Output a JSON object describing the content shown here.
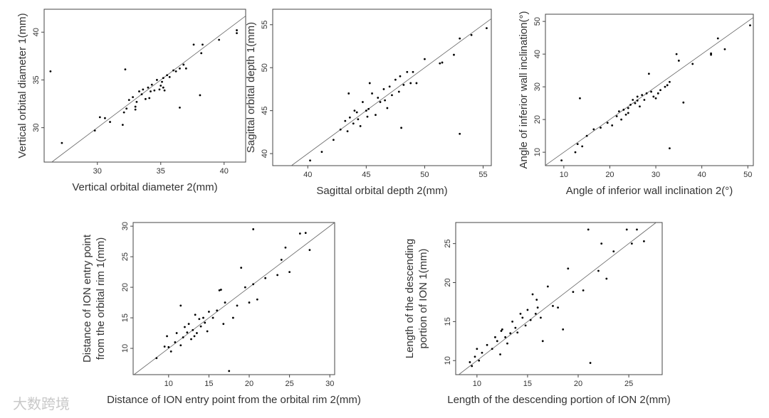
{
  "chart_data": [
    {
      "type": "scatter",
      "xlabel": "Vertical orbital diameter 2(mm)",
      "ylabel": "Vertical orbital diameter 1(mm)",
      "xlim": [
        25.8,
        41.7
      ],
      "ylim": [
        26.4,
        42.4
      ],
      "xticks": [
        30,
        35,
        40
      ],
      "yticks": [
        30,
        35,
        40
      ],
      "color": "#000000",
      "x": [
        26.3,
        27.2,
        29.8,
        30.2,
        30.6,
        31,
        32,
        32.1,
        32.3,
        32.5,
        32.8,
        33,
        33.1,
        33.3,
        33.5,
        33.6,
        33.8,
        34,
        34.1,
        34.3,
        34.5,
        34.7,
        34.9,
        35,
        35.1,
        35.2,
        35.3,
        35.5,
        35.7,
        36,
        36.2,
        36.5,
        36.8,
        37,
        37.6,
        38.1,
        38.2,
        38.3,
        39.6,
        41,
        41,
        32.2,
        33,
        34.2,
        35.2,
        36.5
      ],
      "values": [
        35.9,
        28.4,
        29.7,
        31.1,
        31,
        30.6,
        30.3,
        31.6,
        32,
        32.9,
        33.2,
        32.2,
        32.7,
        33.8,
        33.5,
        34,
        33,
        34.2,
        33.1,
        34.5,
        33.9,
        35,
        34,
        34.4,
        34.8,
        35.2,
        33.9,
        35.5,
        35.3,
        36,
        35.9,
        36.2,
        36.6,
        36.2,
        38.7,
        33.4,
        37.8,
        38.7,
        39.2,
        40.2,
        39.9,
        36.1,
        31.9,
        33.8,
        34.2,
        32.1
      ]
    },
    {
      "type": "scatter",
      "xlabel": "Sagittal orbital depth 2(mm)",
      "ylabel": "Sagittal orbital depth 1(mm)",
      "xlim": [
        37.0,
        55.7
      ],
      "ylim": [
        38.6,
        56.8
      ],
      "xticks": [
        40,
        45,
        50,
        55
      ],
      "yticks": [
        40,
        45,
        50,
        55
      ],
      "color": "#000000",
      "x": [
        40.2,
        41.2,
        42.2,
        42.8,
        43.2,
        43.5,
        43.6,
        43.9,
        44,
        44.2,
        44.5,
        44.7,
        45,
        45.1,
        45.3,
        45.5,
        45.8,
        46,
        46.2,
        46.5,
        46.8,
        47,
        47.2,
        47.5,
        47.8,
        48,
        48.2,
        48.5,
        48.8,
        49,
        49.3,
        50,
        51.3,
        51.5,
        52.5,
        53,
        53,
        54,
        55.3,
        44.3,
        45.2,
        46.6,
        47.9,
        43.4
      ],
      "values": [
        39.2,
        40.2,
        41.6,
        42.8,
        43.8,
        47,
        44.2,
        43.5,
        45,
        44.8,
        43.2,
        46,
        45,
        44.3,
        48.2,
        47,
        44.5,
        46.5,
        46,
        47.5,
        45.3,
        47.8,
        46.8,
        48.6,
        47.2,
        43,
        48,
        49.5,
        48.2,
        49.5,
        48.2,
        51,
        50.5,
        50.6,
        51.5,
        42.3,
        53.4,
        53.8,
        54.6,
        44,
        45.2,
        46.2,
        49,
        42.6
      ]
    },
    {
      "type": "scatter",
      "xlabel": "Angle of inferior wall inclination 2(°)",
      "ylabel": "Angle of inferior wall inclination(°)",
      "xlim": [
        6.0,
        51.2
      ],
      "ylim": [
        5.9,
        52.2
      ],
      "xticks": [
        10,
        20,
        30,
        40,
        50
      ],
      "yticks": [
        10,
        20,
        30,
        40,
        50
      ],
      "color": "#000000",
      "x": [
        9.5,
        12.5,
        13,
        13.5,
        14,
        15,
        16.5,
        18,
        19.5,
        20.5,
        21.5,
        22,
        22.5,
        23,
        23.5,
        24,
        24.5,
        25,
        25.5,
        26,
        26.5,
        27,
        27.5,
        28,
        28.5,
        29,
        29.5,
        30,
        31,
        32,
        32.5,
        33,
        33,
        34.5,
        35,
        36,
        38,
        42,
        42,
        43.5,
        45,
        50.5,
        24,
        26,
        30.5
      ],
      "values": [
        7.5,
        10,
        12.5,
        26.5,
        11.8,
        15,
        17,
        17.5,
        19,
        18.2,
        21,
        22.5,
        20,
        23,
        21.5,
        22,
        24.5,
        26,
        25,
        27,
        24,
        27.5,
        26,
        28,
        34,
        28.5,
        27,
        26.5,
        29,
        30,
        30.5,
        31.5,
        11.2,
        40,
        38,
        25.2,
        37,
        39.8,
        40.2,
        44.8,
        41.5,
        48.8,
        23.5,
        25.8,
        28
      ]
    },
    {
      "type": "scatter",
      "xlabel": "Distance of ION entry point from the orbital rim 2(mm)",
      "ylabel": [
        "Distance of ION entry point",
        "from the orbital rim 1(mm)"
      ],
      "xlim": [
        5.6,
        30.6
      ],
      "ylim": [
        5.7,
        30.6
      ],
      "xticks": [
        10,
        15,
        20,
        25,
        30
      ],
      "yticks": [
        10,
        15,
        20,
        25,
        30
      ],
      "color": "#000000",
      "x": [
        8.5,
        9.5,
        9.8,
        10,
        10.3,
        10.8,
        11,
        11.5,
        11.8,
        12,
        12.3,
        12.5,
        12.8,
        13,
        13.3,
        13.5,
        13.8,
        14,
        14.3,
        14.5,
        14.8,
        15,
        15.5,
        16,
        16.3,
        16.8,
        17,
        17.5,
        18,
        18.5,
        19,
        19.5,
        20,
        20.5,
        20.5,
        21,
        22,
        23.5,
        24,
        24.5,
        25,
        26.3,
        27,
        27.5,
        11.5,
        16.5,
        13.2
      ],
      "values": [
        8.4,
        10.3,
        12,
        10.2,
        9.5,
        11,
        12.5,
        17,
        11.8,
        13.5,
        12.6,
        14,
        11.5,
        13,
        15.5,
        12.5,
        14.8,
        13.6,
        15,
        14.2,
        12.8,
        16,
        15,
        16.2,
        19.5,
        14,
        17.5,
        6.3,
        15,
        17,
        23.2,
        20,
        17.5,
        29.5,
        20.5,
        18,
        21.5,
        22,
        24.5,
        26.5,
        22.5,
        28.8,
        28.9,
        26.1,
        10.5,
        19.6,
        12
      ]
    },
    {
      "type": "scatter",
      "xlabel": "Length of the descending portion of ION 2(mm)",
      "ylabel": [
        "Length of the descending",
        "portion of ION 1(mm)"
      ],
      "xlim": [
        7.9,
        28.3
      ],
      "ylim": [
        8.2,
        27.7
      ],
      "xticks": [
        10,
        15,
        20,
        25
      ],
      "yticks": [
        10,
        15,
        20,
        25
      ],
      "color": "#000000",
      "x": [
        9.3,
        9.5,
        9.8,
        10,
        10.2,
        10.5,
        11,
        11.5,
        11.8,
        12,
        12.3,
        12.5,
        12.8,
        13,
        13.3,
        13.5,
        13.8,
        14,
        14.3,
        14.5,
        14.8,
        15,
        15.3,
        15.5,
        15.8,
        16,
        16.3,
        16.5,
        17,
        17.5,
        18,
        18.5,
        19,
        19.5,
        20.5,
        21,
        21.2,
        22,
        22.3,
        22.8,
        23.5,
        24.8,
        25.3,
        25.8,
        26.5,
        15.9,
        12.4
      ],
      "values": [
        9.8,
        9.3,
        10.5,
        11.5,
        10,
        11,
        12,
        11.5,
        13,
        12.5,
        10.8,
        14,
        13,
        12.2,
        13.5,
        15,
        14.2,
        13.6,
        16,
        15.5,
        14.5,
        16.5,
        15.2,
        18.5,
        16,
        16.8,
        15.5,
        12.5,
        19.5,
        17,
        16.8,
        14,
        21.8,
        18.8,
        19,
        26.8,
        9.7,
        21.5,
        25,
        20.5,
        24,
        26.8,
        25,
        26.8,
        25.3,
        17.8,
        13.8
      ]
    }
  ],
  "watermark": "大数跨境"
}
